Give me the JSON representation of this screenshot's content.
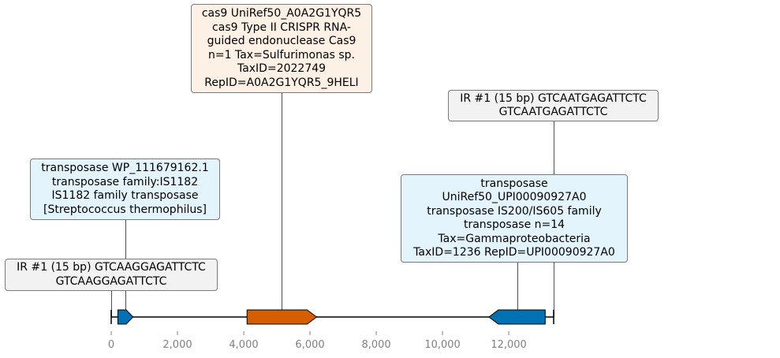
{
  "chart_data": {
    "type": "genome_map",
    "xlim": [
      0,
      13355
    ],
    "x_ticks": [
      0,
      2000,
      4000,
      6000,
      8000,
      10000,
      12000
    ],
    "x_tick_labels": [
      "0",
      "2,000",
      "4,000",
      "6,000",
      "8,000",
      "10,000",
      "12,000"
    ],
    "backbone": {
      "start": 0,
      "end": 13355
    },
    "features": [
      {
        "id": "transposase_small",
        "start": 200,
        "end": 660,
        "strand": "+",
        "color": "#0072b2"
      },
      {
        "id": "cas9",
        "start": 4100,
        "end": 6200,
        "strand": "+",
        "color": "#d55e00"
      },
      {
        "id": "transposase_large",
        "start": 11400,
        "end": 13100,
        "strand": "-",
        "color": "#0072b2"
      }
    ],
    "annotations": [
      {
        "id": "cas9_label",
        "anchor": 5150,
        "fill": "#fdf0e4",
        "lines": [
          "cas9 UniRef50_A0A2G1YQR5",
          "cas9 Type II CRISPR RNA-",
          "guided endonuclease Cas9",
          "n=1 Tax=Sulfurimonas sp.",
          "TaxID=2022749",
          "RepID=A0A2G1YQR5_9HELI"
        ]
      },
      {
        "id": "ir_right_label",
        "anchor": 13355,
        "fill": "#f2f2f2",
        "lines": [
          "IR #1 (15 bp) GTCAATGAGATTCTC",
          "GTCAATGAGATTCTC"
        ]
      },
      {
        "id": "transposase_left_label",
        "anchor": 430,
        "fill": "#e3f4fc",
        "lines": [
          "transposase WP_111679162.1",
          "transposase family:IS1182",
          "IS1182 family transposase",
          "[Streptococcus thermophilus]"
        ]
      },
      {
        "id": "transposase_right_label",
        "anchor": 12250,
        "fill": "#e3f4fc",
        "lines": [
          "transposase",
          "UniRef50_UPI00090927A0",
          "transposase IS200/IS605 family",
          "transposase n=14",
          "Tax=Gammaproteobacteria",
          "TaxID=1236 RepID=UPI00090927A0"
        ]
      },
      {
        "id": "ir_left_label",
        "anchor": 0,
        "fill": "#f2f2f2",
        "lines": [
          "IR #1 (15 bp) GTCAAGGAGATTCTC",
          "GTCAAGGAGATTCTC"
        ]
      }
    ]
  }
}
